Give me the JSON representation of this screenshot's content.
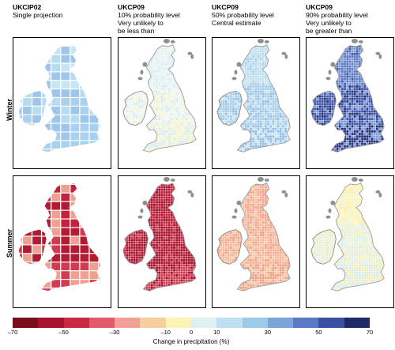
{
  "columns": [
    {
      "title": "UKCIP02",
      "lines": [
        "Single projection"
      ]
    },
    {
      "title": "UKCP09",
      "lines": [
        "10% probability level",
        "Very unlikely to",
        "be less than"
      ]
    },
    {
      "title": "UKCP09",
      "lines": [
        "50% probability level",
        "Central estimate"
      ]
    },
    {
      "title": "UKCP09",
      "lines": [
        "90% probability level",
        "Very unlikely to",
        "be greater than"
      ]
    }
  ],
  "rows": [
    {
      "label": "Winter"
    },
    {
      "label": "Summer"
    }
  ],
  "legend": {
    "title": "Change in precipitation (%)",
    "ticks": [
      "–70",
      "–50",
      "–30",
      "–10",
      "0",
      "10",
      "30",
      "50",
      "70"
    ],
    "colors": [
      "#7a0c1c",
      "#a8122c",
      "#c92a42",
      "#e05a6a",
      "#f2a097",
      "#f7cf9e",
      "#fcf3b4",
      "#dff0f0",
      "#bfe0f0",
      "#9ccbe8",
      "#7aa6dc",
      "#5b78c4",
      "#3b4fa3",
      "#1c2a66"
    ]
  },
  "panels": [
    {
      "row": 0,
      "col": 0,
      "style": "coarse",
      "palette": [
        "#c7e6f5",
        "#b6dcf2",
        "#a7d1ef",
        "#9dc6ea"
      ]
    },
    {
      "row": 0,
      "col": 1,
      "style": "fine",
      "palette": [
        "#e3f2f3",
        "#eef6ef",
        "#f6f4cc",
        "#d8ecf2"
      ]
    },
    {
      "row": 0,
      "col": 2,
      "style": "fine",
      "palette": [
        "#bfdef0",
        "#a9cfe9",
        "#97bfe4",
        "#c9e5f2"
      ]
    },
    {
      "row": 0,
      "col": 3,
      "style": "fine",
      "palette": [
        "#5d78c2",
        "#3f56a8",
        "#27327a",
        "#7e9bd6"
      ]
    },
    {
      "row": 1,
      "col": 0,
      "style": "coarse",
      "palette": [
        "#c4223c",
        "#b51a33",
        "#d23a50",
        "#f0a090"
      ]
    },
    {
      "row": 1,
      "col": 1,
      "style": "fine",
      "palette": [
        "#c21f3a",
        "#ad1530",
        "#d13950",
        "#9c1028"
      ]
    },
    {
      "row": 1,
      "col": 2,
      "style": "fine",
      "palette": [
        "#f3a48e",
        "#f6b497",
        "#efa088",
        "#f8c8a4"
      ]
    },
    {
      "row": 1,
      "col": 3,
      "style": "fine",
      "palette": [
        "#fcf5bb",
        "#e9f2dc",
        "#d9edf1",
        "#fbeeb0"
      ]
    }
  ]
}
